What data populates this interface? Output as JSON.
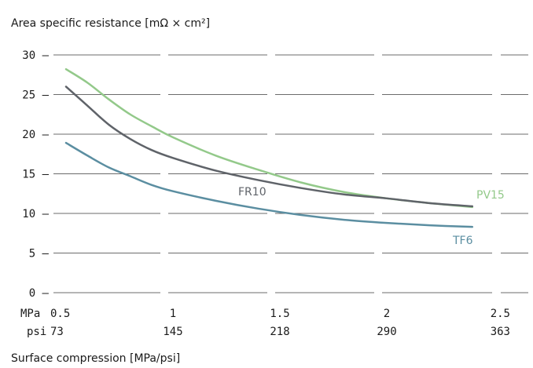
{
  "chart_data": {
    "type": "line",
    "ylabel": "Area specific resistance [mΩ × cm²]",
    "xlabel": "Surface compression [MPa/psi]",
    "ylim": [
      0,
      30
    ],
    "xlim": [
      0.5,
      2.5
    ],
    "yticks": [
      0,
      5,
      10,
      15,
      20,
      25,
      30
    ],
    "xticks": [
      {
        "value": 0.5,
        "mpa": "0.5",
        "psi": "73"
      },
      {
        "value": 1.0,
        "mpa": "1",
        "psi": "145"
      },
      {
        "value": 1.5,
        "mpa": "1.5",
        "psi": "218"
      },
      {
        "value": 2.0,
        "mpa": "2",
        "psi": "290"
      },
      {
        "value": 2.5,
        "mpa": "2.5",
        "psi": "363"
      }
    ],
    "x_unit_labels": {
      "mpa": "MPa",
      "psi": "psi"
    },
    "grid": true,
    "series": [
      {
        "name": "PV15",
        "color": "#93c98a",
        "x": [
          0.5,
          0.6,
          0.7,
          0.8,
          0.9,
          1.0,
          1.2,
          1.4,
          1.6,
          1.8,
          2.0,
          2.2,
          2.4
        ],
        "y": [
          28.2,
          26.5,
          24.4,
          22.5,
          21.0,
          19.6,
          17.3,
          15.5,
          13.9,
          12.7,
          11.9,
          11.3,
          10.8
        ]
      },
      {
        "name": "FR10",
        "color": "#5f6369",
        "x": [
          0.5,
          0.6,
          0.7,
          0.8,
          0.9,
          1.0,
          1.2,
          1.4,
          1.6,
          1.8,
          2.0,
          2.2,
          2.4
        ],
        "y": [
          26.0,
          23.6,
          21.2,
          19.4,
          18.0,
          17.0,
          15.4,
          14.2,
          13.2,
          12.4,
          11.9,
          11.3,
          10.9
        ]
      },
      {
        "name": "TF6",
        "color": "#5b8ea1",
        "x": [
          0.5,
          0.6,
          0.7,
          0.8,
          0.9,
          1.0,
          1.2,
          1.4,
          1.6,
          1.8,
          2.0,
          2.2,
          2.4
        ],
        "y": [
          18.9,
          17.3,
          15.8,
          14.7,
          13.6,
          12.8,
          11.6,
          10.6,
          9.8,
          9.2,
          8.8,
          8.5,
          8.3
        ]
      }
    ],
    "grid_color": "#3a3a3a"
  }
}
